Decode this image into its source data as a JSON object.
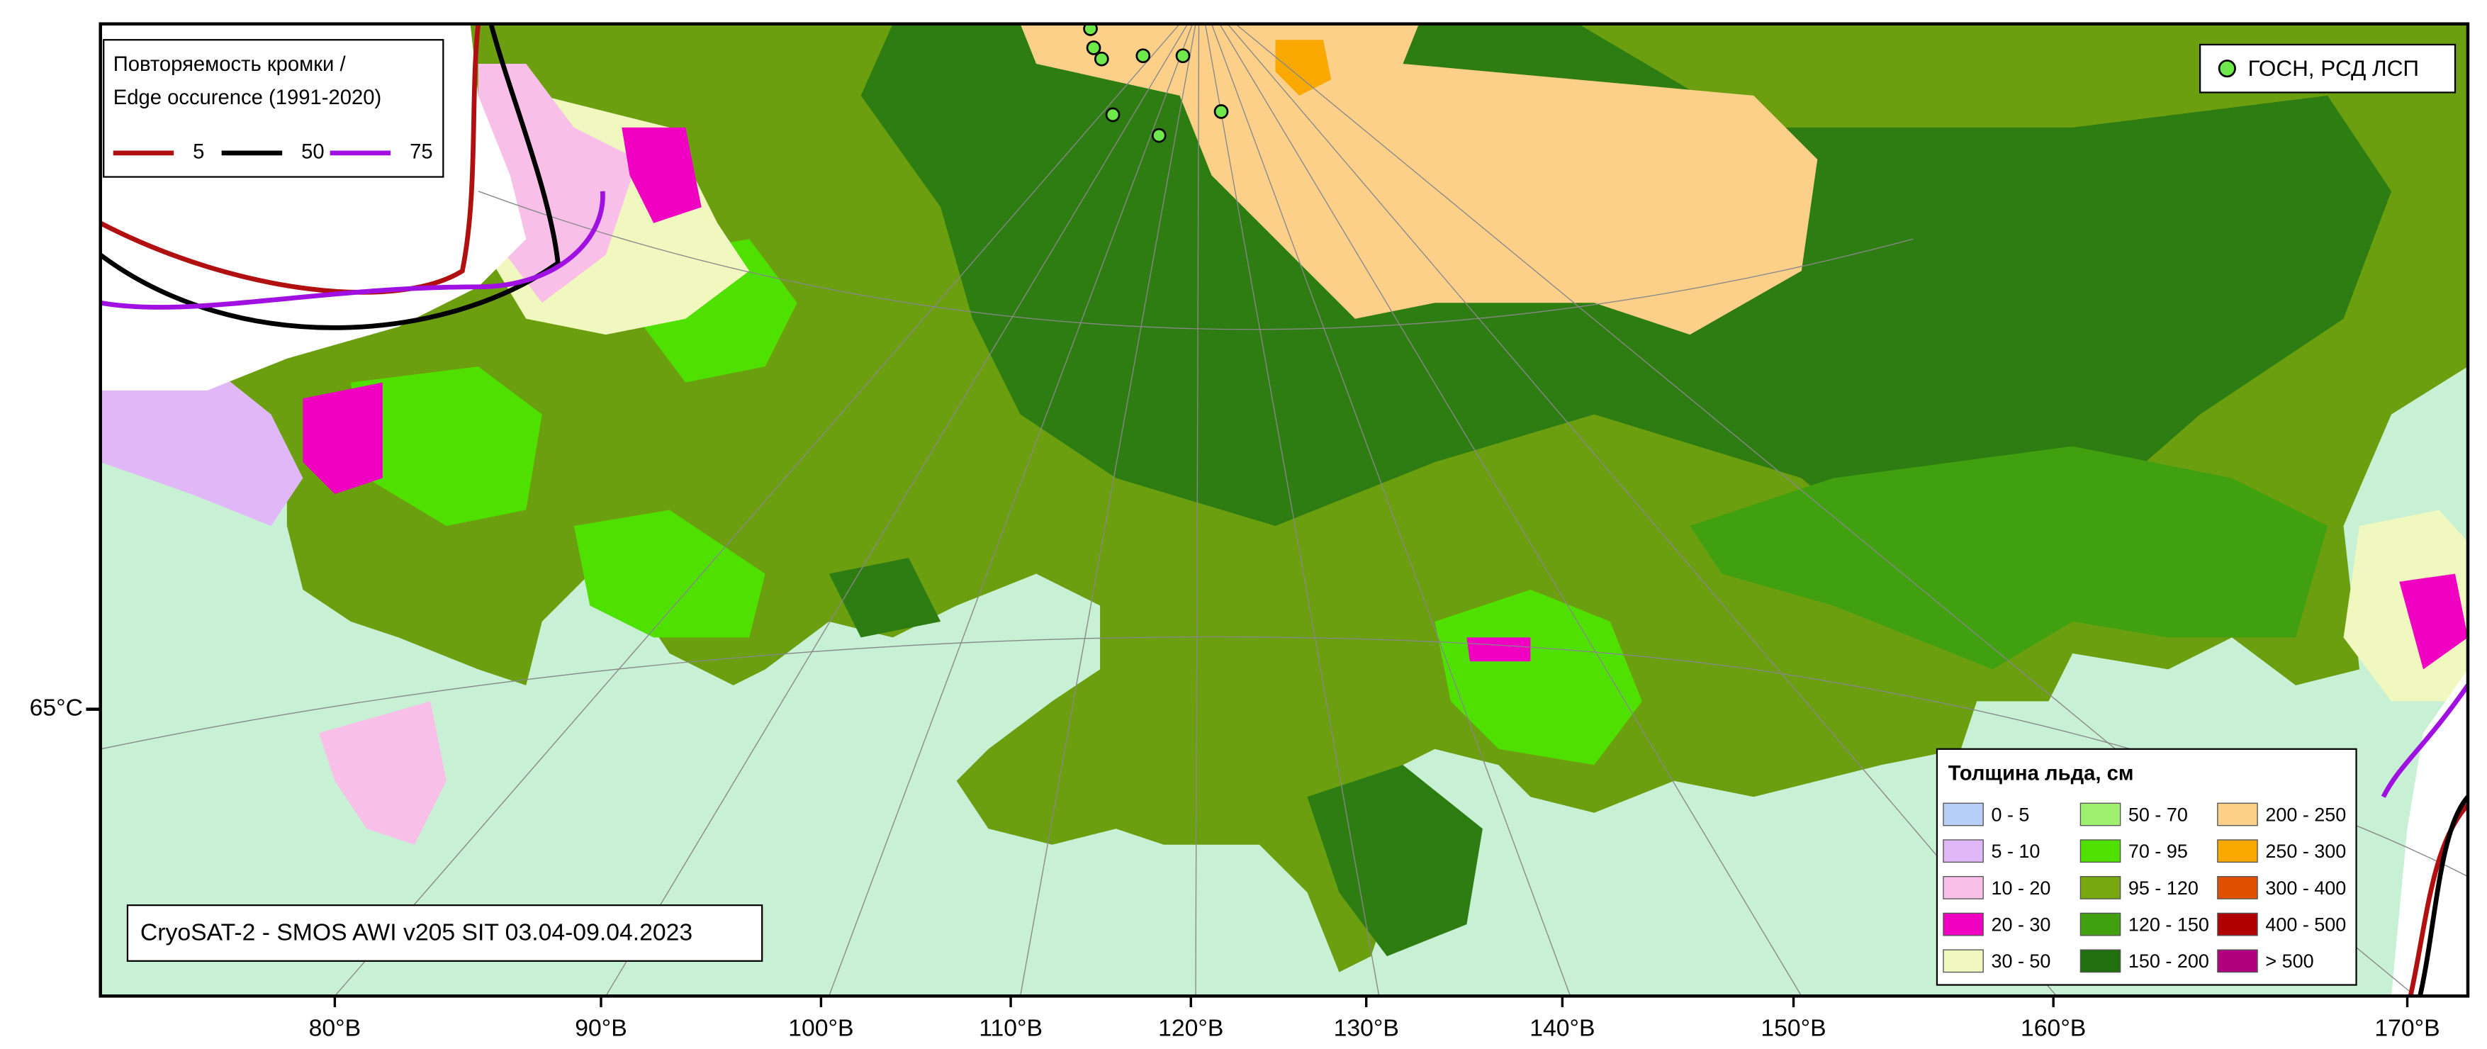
{
  "edge_legend": {
    "title_line1": "Повторяемость кромки /",
    "title_line2": "Edge occurence (1991-2020)",
    "items": [
      {
        "label": "5",
        "color": "#b01010"
      },
      {
        "label": "50",
        "color": "#000000"
      },
      {
        "label": "75",
        "color": "#a010e0"
      }
    ]
  },
  "points_legend": {
    "label": "ГОСН, РСД ЛСП",
    "color": "#6ee84a"
  },
  "source_label": "CryoSAT-2 - SMOS AWI v205 SIT 03.04-09.04.2023",
  "thickness_legend": {
    "title": "Толщина льда, см",
    "items": [
      {
        "label": "0 - 5",
        "color": "#b8d0f8"
      },
      {
        "label": "5 - 10",
        "color": "#e0b8f8"
      },
      {
        "label": "10 - 20",
        "color": "#f8c0e8"
      },
      {
        "label": "20 - 30",
        "color": "#f000c0"
      },
      {
        "label": "30 - 50",
        "color": "#f0f8c0"
      },
      {
        "label": "50 - 70",
        "color": "#a0f070"
      },
      {
        "label": "70 - 95",
        "color": "#50e000"
      },
      {
        "label": "95 - 120",
        "color": "#78a810"
      },
      {
        "label": "120 - 150",
        "color": "#40a010"
      },
      {
        "label": "150 - 200",
        "color": "#207010"
      },
      {
        "label": "200 - 250",
        "color": "#fcd088"
      },
      {
        "label": "250 - 300",
        "color": "#f8a800"
      },
      {
        "label": "300 - 400",
        "color": "#e05000"
      },
      {
        "label": "400 - 500",
        "color": "#b00000"
      },
      {
        "label": "> 500",
        "color": "#b00080"
      }
    ]
  },
  "longitude_labels": [
    "80°В",
    "90°В",
    "100°В",
    "110°В",
    "120°В",
    "130°В",
    "140°В",
    "150°В",
    "160°В",
    "170°В"
  ],
  "latitude_labels": [
    "65°С"
  ]
}
